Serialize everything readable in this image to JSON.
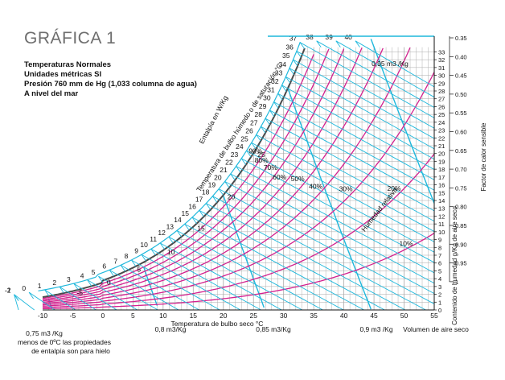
{
  "title": "GRÁFICA 1",
  "info_lines": [
    "Temperaturas Normales",
    "Unidades métricas SI",
    "Presión 760 mm de Hg (1,033 columna de agua)",
    "A nivel del mar"
  ],
  "chart_data": {
    "type": "psychrometric",
    "x_axis": {
      "label": "Temperatura de bulbo seco °C",
      "ticks": [
        -10,
        -5,
        0,
        5,
        10,
        15,
        20,
        25,
        30,
        35,
        40,
        45,
        50,
        55
      ],
      "range": [
        -10,
        55
      ]
    },
    "y_axis_right": {
      "label": "Contenido de humedad g/Kg de aire seco",
      "ticks": [
        0,
        1,
        2,
        3,
        4,
        5,
        6,
        7,
        8,
        9,
        10,
        11,
        12,
        13,
        14,
        15,
        16,
        17,
        18,
        19,
        20,
        21,
        22,
        23,
        24,
        25,
        26,
        27,
        28,
        29,
        30,
        31,
        32,
        33
      ],
      "range": [
        0,
        35
      ]
    },
    "sensible_heat_factor": {
      "label": "Factor de calor sensible",
      "ticks": [
        "0.35",
        "0.40",
        "0.45",
        "0.50",
        "0.55",
        "0.60",
        "0.65",
        "0.70",
        "0.75",
        "0.80",
        "0.85",
        "0.90",
        "0.95",
        "1"
      ]
    },
    "enthalpy_scale": {
      "label": "Entalpía en W/Kg",
      "ticks": [
        -2,
        -1,
        0,
        1,
        2,
        3,
        4,
        5,
        6,
        7,
        8,
        9,
        10,
        11,
        12,
        13,
        14,
        15,
        16,
        17,
        18,
        19,
        20,
        21,
        22,
        23,
        24,
        25,
        26,
        27,
        28,
        29,
        30,
        31,
        32,
        33,
        34,
        35,
        36,
        37,
        38,
        39,
        40
      ]
    },
    "saturation_curve_label": "Temperatura de bulbo húmedo o de saturación °C",
    "wet_bulb_labels": [
      -5,
      0,
      5,
      10,
      15,
      20,
      25
    ],
    "relative_humidity": {
      "label": "Humedad relativa",
      "curves": [
        "10%",
        "20%",
        "30%",
        "40%",
        "50%",
        "60%",
        "70%",
        "80%",
        "90%"
      ]
    },
    "specific_volume": {
      "label": "Volumen de aire seco",
      "lines": [
        "0,75 m3 /Kg",
        "0,8 m3/Kg",
        "0,85 m3/Kg",
        "0,9 m3 /Kg",
        "0,95 m3 /Kg"
      ]
    }
  },
  "footnote": [
    "menos de 0ºC las propiedades",
    "de entalpía son para hielo"
  ],
  "colors": {
    "cyan": "#1fb8dc",
    "magenta": "#d3218f",
    "grey_grid": "#a9a9a9",
    "saturation": "#4a4a4a",
    "title_grey": "#6e6e6e"
  }
}
